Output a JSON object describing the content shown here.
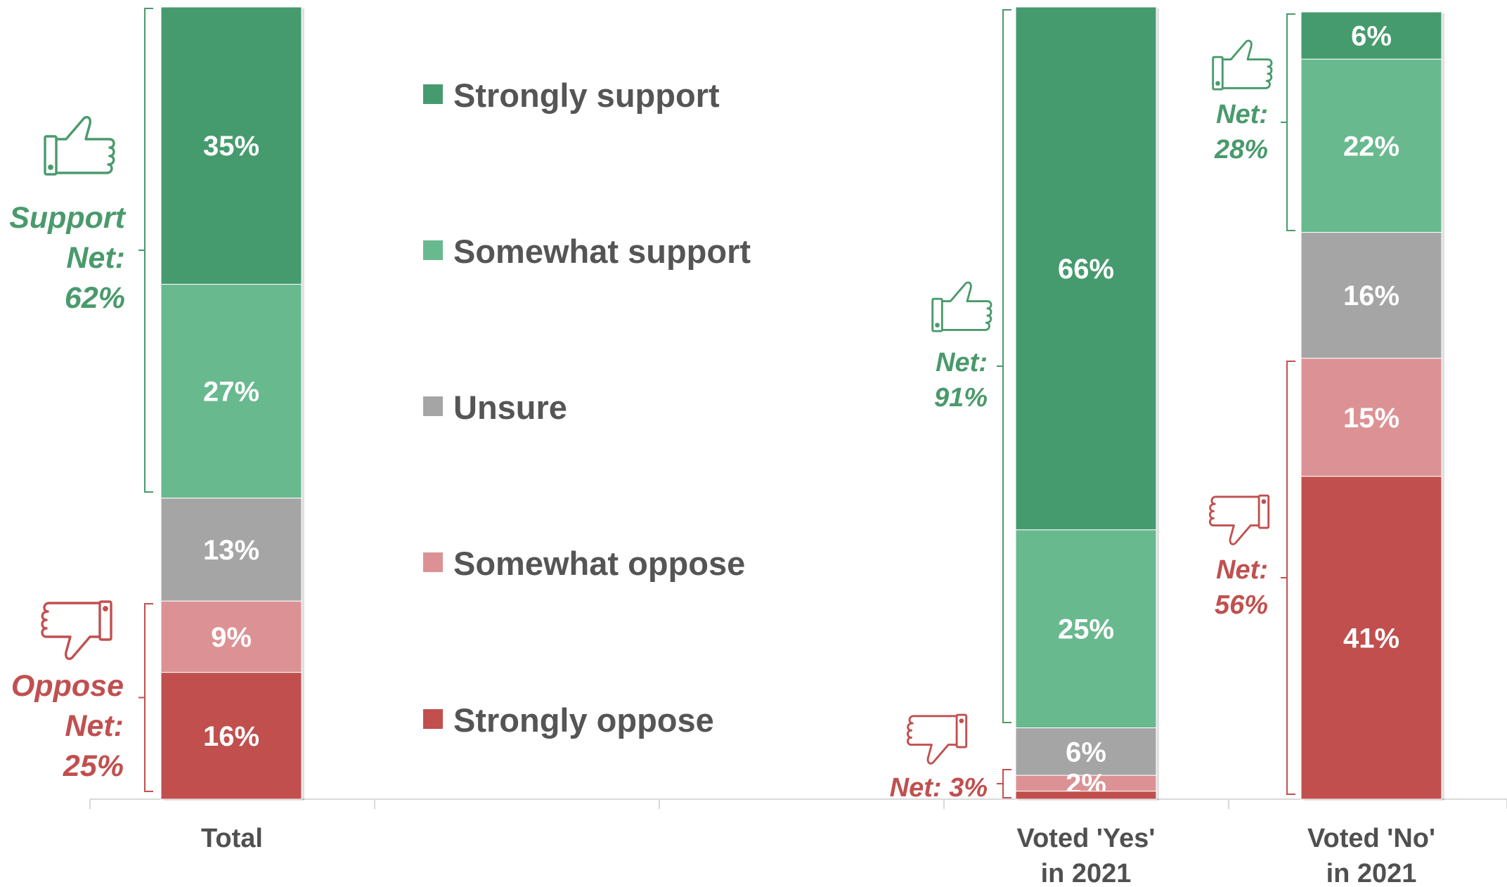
{
  "chart_data": {
    "type": "bar",
    "stacked": true,
    "categories": [
      "Total",
      "Voted 'Yes'\nin 2021",
      "Voted 'No'\nin 2021"
    ],
    "series": [
      {
        "name": "Strongly support",
        "values": [
          35,
          66,
          6
        ]
      },
      {
        "name": "Somewhat support",
        "values": [
          27,
          25,
          22
        ]
      },
      {
        "name": "Unsure",
        "values": [
          13,
          6,
          16
        ]
      },
      {
        "name": "Somewhat oppose",
        "values": [
          9,
          2,
          15
        ]
      },
      {
        "name": "Strongly oppose",
        "values": [
          16,
          1,
          41
        ]
      }
    ],
    "data_labels": [
      [
        "35%",
        "27%",
        "13%",
        "9%",
        "16%"
      ],
      [
        "66%",
        "25%",
        "6%",
        "2%",
        ""
      ],
      [
        "6%",
        "22%",
        "16%",
        "15%",
        "41%"
      ]
    ],
    "legend_position": "center",
    "nets": [
      {
        "bar": 0,
        "kind": "support",
        "lines": [
          "Support",
          "Net:",
          "62%"
        ],
        "value": 62
      },
      {
        "bar": 0,
        "kind": "oppose",
        "lines": [
          "Oppose",
          "Net:",
          "25%"
        ],
        "value": 25
      },
      {
        "bar": 1,
        "kind": "support",
        "lines": [
          "Net:",
          "91%"
        ],
        "value": 91
      },
      {
        "bar": 1,
        "kind": "oppose",
        "lines": [
          "Net: 3%"
        ],
        "value": 3
      },
      {
        "bar": 2,
        "kind": "support",
        "lines": [
          "Net:",
          "28%"
        ],
        "value": 28
      },
      {
        "bar": 2,
        "kind": "oppose",
        "lines": [
          "Net:",
          "56%"
        ],
        "value": 56
      }
    ],
    "grid": false
  },
  "colors": {
    "series": [
      "#469b6e",
      "#69b98f",
      "#a5a5a5",
      "#dc9294",
      "#c04f4e"
    ],
    "support_text": "#4a9a6c",
    "oppose_text": "#c0504f",
    "axis": "#d9d9d9"
  },
  "icons": {
    "support": "thumbs-up-icon",
    "oppose": "thumbs-down-icon"
  }
}
